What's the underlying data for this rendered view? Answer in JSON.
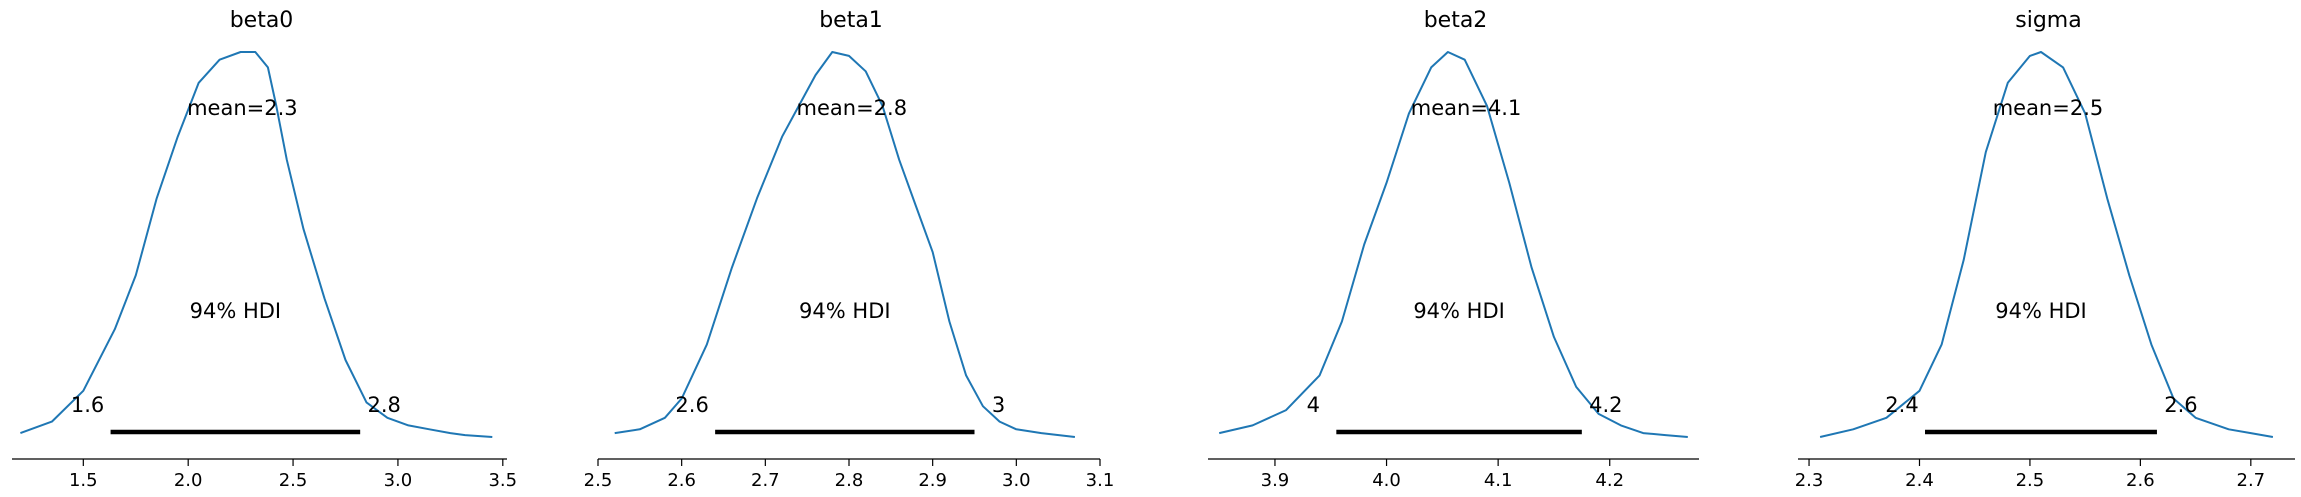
{
  "chart_data": [
    {
      "type": "density",
      "title": "beta0",
      "mean_label": "mean=2.3",
      "hdi_label": "94% HDI",
      "hdi": {
        "low": 1.63,
        "high": 2.82,
        "low_label": "1.6",
        "high_label": "2.8"
      },
      "xlim": [
        1.16,
        3.52
      ],
      "xticks": [
        1.5,
        2.0,
        2.5,
        3.0,
        3.5
      ],
      "xtick_labels": [
        "1.5",
        "2.0",
        "2.5",
        "3.0",
        "3.5"
      ],
      "density": {
        "x": [
          1.2,
          1.35,
          1.5,
          1.65,
          1.75,
          1.85,
          1.95,
          2.05,
          2.15,
          2.25,
          2.32,
          2.38,
          2.42,
          2.47,
          2.55,
          2.65,
          2.75,
          2.85,
          2.95,
          3.05,
          3.15,
          3.25,
          3.32,
          3.45
        ],
        "y": [
          0.01,
          0.04,
          0.12,
          0.28,
          0.42,
          0.62,
          0.78,
          0.92,
          0.98,
          1.0,
          1.0,
          0.96,
          0.86,
          0.72,
          0.54,
          0.36,
          0.2,
          0.09,
          0.05,
          0.03,
          0.02,
          0.01,
          0.005,
          0.0
        ]
      }
    },
    {
      "type": "density",
      "title": "beta1",
      "mean_label": "mean=2.8",
      "hdi_label": "94% HDI",
      "hdi": {
        "low": 2.64,
        "high": 2.95,
        "low_label": "2.6",
        "high_label": "3"
      },
      "xlim": [
        2.5,
        3.1
      ],
      "xticks": [
        2.5,
        2.6,
        2.7,
        2.8,
        2.9,
        3.0,
        3.1
      ],
      "xtick_labels": [
        "2.5",
        "2.6",
        "2.7",
        "2.8",
        "2.9",
        "3.0",
        "3.1"
      ],
      "density": {
        "x": [
          2.52,
          2.55,
          2.58,
          2.6,
          2.63,
          2.66,
          2.69,
          2.72,
          2.74,
          2.76,
          2.78,
          2.8,
          2.82,
          2.84,
          2.86,
          2.88,
          2.9,
          2.92,
          2.94,
          2.96,
          2.98,
          3.0,
          3.03,
          3.07
        ],
        "y": [
          0.01,
          0.02,
          0.05,
          0.1,
          0.24,
          0.44,
          0.62,
          0.78,
          0.86,
          0.94,
          1.0,
          0.99,
          0.95,
          0.86,
          0.72,
          0.6,
          0.48,
          0.3,
          0.16,
          0.08,
          0.04,
          0.02,
          0.01,
          0.0
        ]
      }
    },
    {
      "type": "density",
      "title": "beta2",
      "mean_label": "mean=4.1",
      "hdi_label": "94% HDI",
      "hdi": {
        "low": 3.955,
        "high": 4.175,
        "low_label": "4",
        "high_label": "4.2"
      },
      "xlim": [
        3.84,
        4.28
      ],
      "xticks": [
        3.9,
        4.0,
        4.1,
        4.2
      ],
      "xtick_labels": [
        "3.9",
        "4.0",
        "4.1",
        "4.2"
      ],
      "density": {
        "x": [
          3.85,
          3.88,
          3.91,
          3.94,
          3.96,
          3.98,
          4.0,
          4.02,
          4.04,
          4.055,
          4.07,
          4.09,
          4.11,
          4.13,
          4.15,
          4.17,
          4.19,
          4.21,
          4.23,
          4.25,
          4.27
        ],
        "y": [
          0.01,
          0.03,
          0.07,
          0.16,
          0.3,
          0.5,
          0.66,
          0.84,
          0.96,
          1.0,
          0.98,
          0.86,
          0.66,
          0.44,
          0.26,
          0.13,
          0.06,
          0.03,
          0.01,
          0.005,
          0.0
        ]
      }
    },
    {
      "type": "density",
      "title": "sigma",
      "mean_label": "mean=2.5",
      "hdi_label": "94% HDI",
      "hdi": {
        "low": 2.405,
        "high": 2.615,
        "low_label": "2.4",
        "high_label": "2.6"
      },
      "xlim": [
        2.29,
        2.74
      ],
      "xticks": [
        2.3,
        2.4,
        2.5,
        2.6,
        2.7
      ],
      "xtick_labels": [
        "2.3",
        "2.4",
        "2.5",
        "2.6",
        "2.7"
      ],
      "density": {
        "x": [
          2.31,
          2.34,
          2.37,
          2.4,
          2.42,
          2.44,
          2.46,
          2.48,
          2.5,
          2.51,
          2.53,
          2.55,
          2.57,
          2.59,
          2.61,
          2.63,
          2.65,
          2.68,
          2.7,
          2.72
        ],
        "y": [
          0.0,
          0.02,
          0.05,
          0.12,
          0.24,
          0.46,
          0.74,
          0.92,
          0.99,
          1.0,
          0.96,
          0.84,
          0.62,
          0.42,
          0.24,
          0.1,
          0.05,
          0.02,
          0.01,
          0.0
        ]
      }
    }
  ]
}
